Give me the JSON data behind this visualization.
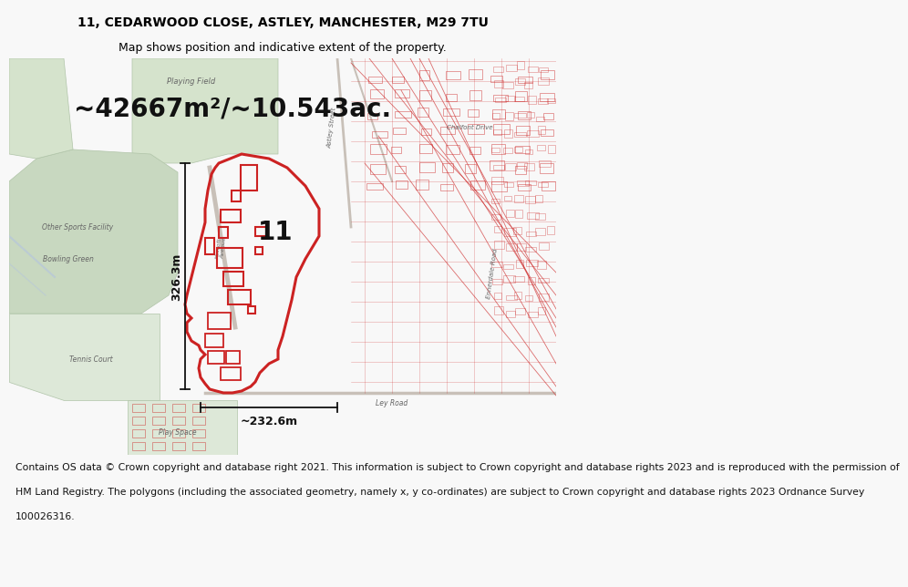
{
  "title_line1": "11, CEDARWOOD CLOSE, ASTLEY, MANCHESTER, M29 7TU",
  "title_line2": "Map shows position and indicative extent of the property.",
  "area_text": "~42667m²/~10.543ac.",
  "label_number": "11",
  "dim_vertical": "326.3m",
  "dim_horizontal": "~232.6m",
  "footer_lines": [
    "Contains OS data © Crown copyright and database right 2021. This information is subject to Crown copyright and database rights 2023 and is reproduced with the permission of",
    "HM Land Registry. The polygons (including the associated geometry, namely x, y co-ordinates) are subject to Crown copyright and database rights 2023 Ordnance Survey",
    "100026316."
  ],
  "red_color": "#cc2222",
  "dim_color": "#111111",
  "map_bg": "#f2f0ef",
  "green1": "#c8d8c0",
  "green2": "#d5e3cc",
  "green3": "#dde8d8",
  "road_color": "#c8c0b8",
  "label_color": "#666666",
  "title_fs": 10,
  "subtitle_fs": 9,
  "area_fs": 20,
  "num_fs": 20,
  "dim_fs": 9,
  "label_fs": 6,
  "footer_fs": 7.8
}
